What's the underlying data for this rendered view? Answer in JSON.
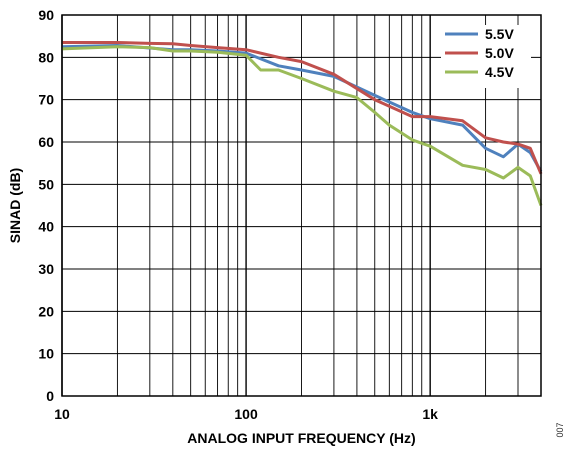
{
  "chart_data": {
    "type": "line",
    "xscale": "log",
    "xlim": [
      10,
      4000
    ],
    "ylim": [
      0,
      90
    ],
    "yticks": [
      0,
      10,
      20,
      30,
      40,
      50,
      60,
      70,
      80,
      90
    ],
    "xticklabels": [
      {
        "value": 10,
        "label": "10"
      },
      {
        "value": 100,
        "label": "100"
      },
      {
        "value": 1000,
        "label": "1k"
      }
    ],
    "xlabel": "ANALOG INPUT FREQUENCY (Hz)",
    "ylabel": "SINAD (dB)",
    "grid": true,
    "legend_position": "top-right",
    "figure_number": "007",
    "series": [
      {
        "name": "5.5V",
        "color": "#4f81bd",
        "x": [
          10,
          20,
          30,
          40,
          50,
          70,
          100,
          150,
          200,
          300,
          500,
          800,
          1000,
          1500,
          2000,
          2500,
          3000,
          3500,
          4000
        ],
        "y": [
          82.5,
          82.8,
          82.2,
          81.8,
          81.8,
          81.5,
          81,
          78,
          77,
          75.5,
          71,
          67,
          65.5,
          64,
          58.5,
          56.5,
          59.5,
          57.5,
          53
        ]
      },
      {
        "name": "5.0V",
        "color": "#c0504d",
        "x": [
          10,
          20,
          30,
          40,
          50,
          70,
          100,
          150,
          200,
          300,
          500,
          800,
          1000,
          1500,
          2000,
          2500,
          3000,
          3500,
          4000
        ],
        "y": [
          83.5,
          83.5,
          83.3,
          83.2,
          82.8,
          82.3,
          81.8,
          80,
          79,
          76,
          70,
          66,
          66,
          65,
          61,
          60,
          59.5,
          58.5,
          52.5
        ]
      },
      {
        "name": "4.5V",
        "color": "#9bbb59",
        "x": [
          10,
          20,
          30,
          40,
          50,
          70,
          100,
          120,
          150,
          200,
          300,
          400,
          500,
          600,
          800,
          1000,
          1500,
          2000,
          2500,
          3000,
          3500,
          4000
        ],
        "y": [
          82,
          82.5,
          82.3,
          81.5,
          81.5,
          81.2,
          80.5,
          77,
          77,
          75,
          72,
          70.5,
          67,
          64,
          60.5,
          59,
          54.5,
          53.5,
          51.5,
          54,
          52,
          45
        ]
      }
    ]
  }
}
